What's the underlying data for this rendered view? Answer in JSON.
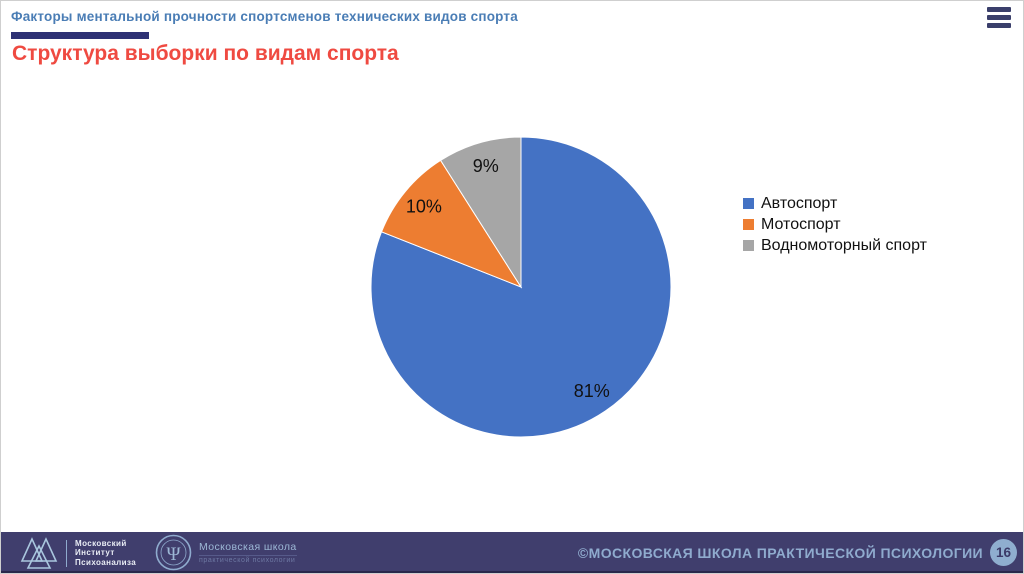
{
  "header": {
    "presentation_title": "Факторы ментальной прочности спортсменов технических видов спорта",
    "menu_icon": "hamburger-icon",
    "accent_bar_color": "#2E3174",
    "title_color": "#4A7DB5"
  },
  "slide": {
    "title": "Структура выборки по видам спорта",
    "title_color": "#EF4A41"
  },
  "chart_data": {
    "type": "pie",
    "title": "Структура выборки по видам спорта",
    "categories": [
      "Автоспорт",
      "Мотоспорт",
      "Водномоторный спорт"
    ],
    "values": [
      81,
      10,
      9
    ],
    "unit": "%",
    "data_labels": [
      "81%",
      "10%",
      "9%"
    ],
    "colors": [
      "#4472C4",
      "#ED7D31",
      "#A6A6A6"
    ],
    "legend_position": "right",
    "start_angle_deg": 0,
    "direction": "clockwise",
    "slice_border_color": "#FFFFFF"
  },
  "footer": {
    "bar_color": "#403E6D",
    "institute_logo": "valknut-triangles-icon",
    "institute_lines": [
      "Московский",
      "Институт",
      "Психоанализа"
    ],
    "school_logo": "psi-circle-icon",
    "school_title": "Московская школа",
    "school_subtitle": "практической психологии",
    "copyright": "©МОСКОВСКАЯ ШКОЛА ПРАКТИЧЕСКОЙ ПСИХОЛОГИИ",
    "page_number": "16",
    "accent_text_color": "#8FABCE"
  }
}
